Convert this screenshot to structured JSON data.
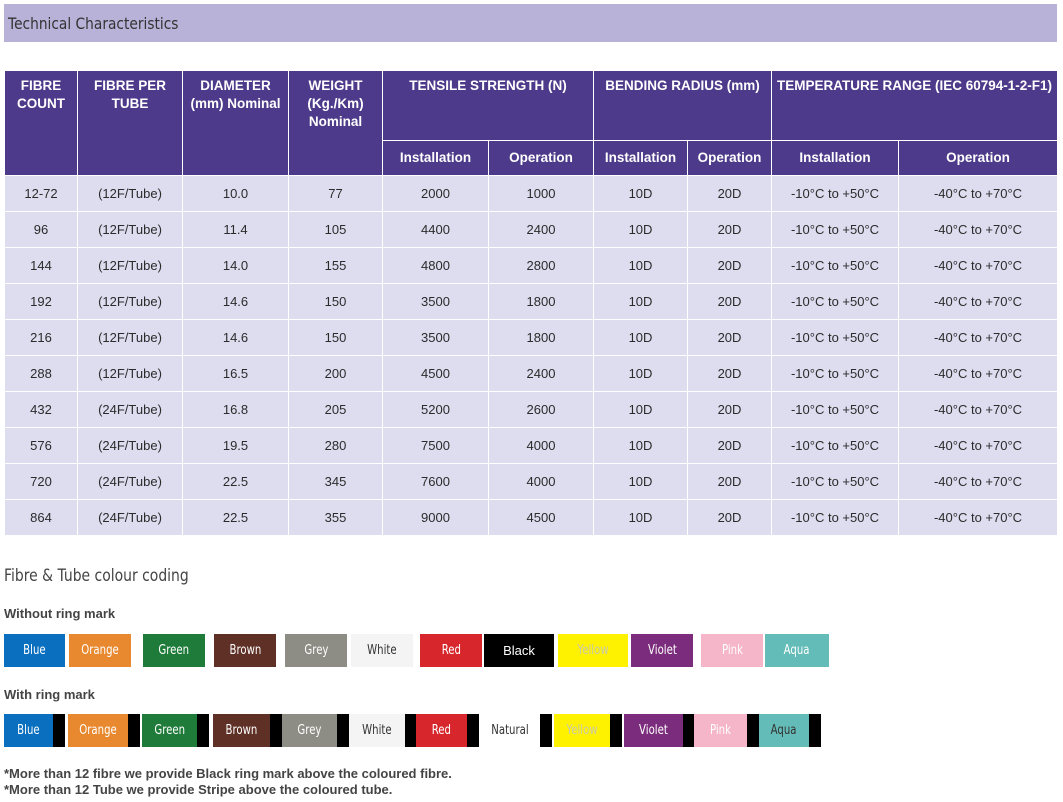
{
  "section_title": "Technical Characteristics",
  "table": {
    "headers": {
      "fibre_count": "FIBRE COUNT",
      "fibre_per_tube": "FIBRE PER TUBE",
      "diameter": "DIAMETER (mm) Nominal",
      "weight": "WEIGHT (Kg./Km) Nominal",
      "tensile": "TENSILE STRENGTH (N)",
      "bending": "BENDING RADIUS (mm)",
      "temperature": "TEMPERATURE RANGE (IEC 60794-1-2-F1)"
    },
    "subheaders": [
      "Installation",
      "Operation",
      "Installation",
      "Operation",
      "Installation",
      "Operation"
    ],
    "rows": [
      [
        "12-72",
        "(12F/Tube)",
        "10.0",
        "77",
        "2000",
        "1000",
        "10D",
        "20D",
        "-10°C to +50°C",
        "-40°C to +70°C"
      ],
      [
        "96",
        "(12F/Tube)",
        "11.4",
        "105",
        "4400",
        "2400",
        "10D",
        "20D",
        "-10°C to +50°C",
        "-40°C to +70°C"
      ],
      [
        "144",
        "(12F/Tube)",
        "14.0",
        "155",
        "4800",
        "2800",
        "10D",
        "20D",
        "-10°C to +50°C",
        "-40°C to +70°C"
      ],
      [
        "192",
        "(12F/Tube)",
        "14.6",
        "150",
        "3500",
        "1800",
        "10D",
        "20D",
        "-10°C to +50°C",
        "-40°C to +70°C"
      ],
      [
        "216",
        "(12F/Tube)",
        "14.6",
        "150",
        "3500",
        "1800",
        "10D",
        "20D",
        "-10°C to +50°C",
        "-40°C to +70°C"
      ],
      [
        "288",
        "(12F/Tube)",
        "16.5",
        "200",
        "4500",
        "2400",
        "10D",
        "20D",
        "-10°C to +50°C",
        "-40°C to +70°C"
      ],
      [
        "432",
        "(24F/Tube)",
        "16.8",
        "205",
        "5200",
        "2600",
        "10D",
        "20D",
        "-10°C to +50°C",
        "-40°C to +70°C"
      ],
      [
        "576",
        "(24F/Tube)",
        "19.5",
        "280",
        "7500",
        "4000",
        "10D",
        "20D",
        "-10°C to +50°C",
        "-40°C to +70°C"
      ],
      [
        "720",
        "(24F/Tube)",
        "22.5",
        "345",
        "7600",
        "4000",
        "10D",
        "20D",
        "-10°C to +50°C",
        "-40°C to +70°C"
      ],
      [
        "864",
        "(24F/Tube)",
        "22.5",
        "355",
        "9000",
        "4500",
        "10D",
        "20D",
        "-10°C to +50°C",
        "-40°C to +70°C"
      ]
    ]
  },
  "colour_coding": {
    "title": "Fibre & Tube colour coding",
    "without_label": "Without ring mark",
    "with_label": "With ring mark",
    "without_ring": [
      {
        "name": "Blue",
        "color": "#0a6fbf",
        "text": "#ffffff"
      },
      {
        "name": "Orange",
        "color": "#e8892f",
        "text": "#ffffff"
      },
      {
        "name": "Green",
        "color": "#1e7b3a",
        "text": "#ffffff"
      },
      {
        "name": "Brown",
        "color": "#5f3126",
        "text": "#ffffff"
      },
      {
        "name": "Grey",
        "color": "#8d8d85",
        "text": "#ffffff"
      },
      {
        "name": "White",
        "color": "#f4f4f4",
        "text": "#333333"
      },
      {
        "name": "Red",
        "color": "#d7272c",
        "text": "#ffffff"
      },
      {
        "name": "Black",
        "color": "#000000",
        "text": "#ffffff"
      },
      {
        "name": "Yellow",
        "color": "#fff200",
        "text": "#c8c8b0"
      },
      {
        "name": "Violet",
        "color": "#7b2c7c",
        "text": "#ffffff"
      },
      {
        "name": "Pink",
        "color": "#f6b6c9",
        "text": "#ffffff"
      },
      {
        "name": "Aqua",
        "color": "#63bcb7",
        "text": "#ffffff"
      }
    ],
    "with_ring": [
      {
        "name": "Blue",
        "color": "#0a6fbf",
        "text": "#ffffff"
      },
      {
        "name": "Orange",
        "color": "#e8892f",
        "text": "#ffffff"
      },
      {
        "name": "Green",
        "color": "#1e7b3a",
        "text": "#ffffff"
      },
      {
        "name": "Brown",
        "color": "#5f3126",
        "text": "#ffffff"
      },
      {
        "name": "Grey",
        "color": "#8d8d85",
        "text": "#ffffff"
      },
      {
        "name": "White",
        "color": "#f4f4f4",
        "text": "#333333"
      },
      {
        "name": "Red",
        "color": "#d7272c",
        "text": "#ffffff"
      },
      {
        "name": "Natural",
        "color": "#ffffff",
        "text": "#333333"
      },
      {
        "name": "Yellow",
        "color": "#fff200",
        "text": "#c8c8b0"
      },
      {
        "name": "Violet",
        "color": "#7b2c7c",
        "text": "#ffffff"
      },
      {
        "name": "Pink",
        "color": "#f6b6c9",
        "text": "#ffffff"
      },
      {
        "name": "Aqua",
        "color": "#63bcb7",
        "text": "#333333"
      }
    ],
    "ring_color": "#000000"
  },
  "notes": [
    "*More than 12 fibre we provide Black ring mark above the coloured fibre.",
    "*More than 12 Tube we provide Stripe above the coloured tube."
  ]
}
